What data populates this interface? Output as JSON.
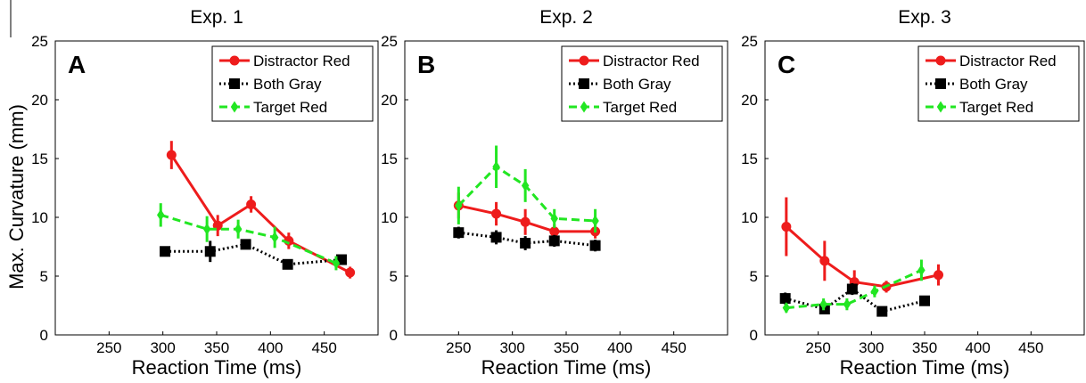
{
  "ylabel": "Max. Curvature (mm)",
  "colors": {
    "distractor_red": "#ee1c1c",
    "both_gray": "#000000",
    "target_red": "#22e622",
    "axis": "#000000",
    "background": "#ffffff"
  },
  "chart_data": [
    {
      "type": "line",
      "title": "Exp. 1",
      "panel_letter": "A",
      "xlabel": "Reaction Time (ms)",
      "ylabel": "Max. Curvature (mm)",
      "xlim": [
        200,
        500
      ],
      "ylim": [
        0,
        25
      ],
      "xticks": [
        250,
        300,
        350,
        400,
        450
      ],
      "yticks": [
        0,
        5,
        10,
        15,
        20,
        25
      ],
      "grid": false,
      "legend_position": "top-right",
      "series": [
        {
          "name": "Distractor Red",
          "color": "#ee1c1c",
          "style": "solid",
          "marker": "circle",
          "points": [
            {
              "x": 308,
              "y": 15.3,
              "err": 1.2
            },
            {
              "x": 351,
              "y": 9.3,
              "err": 0.9
            },
            {
              "x": 382,
              "y": 11.1,
              "err": 0.7
            },
            {
              "x": 417,
              "y": 8.0,
              "err": 0.7
            },
            {
              "x": 474,
              "y": 5.3,
              "err": 0.5
            }
          ]
        },
        {
          "name": "Both Gray",
          "color": "#000000",
          "style": "dotted",
          "marker": "square",
          "points": [
            {
              "x": 302,
              "y": 7.1,
              "err": 0.2
            },
            {
              "x": 344,
              "y": 7.1,
              "err": 0.9
            },
            {
              "x": 377,
              "y": 7.7,
              "err": 0.4
            },
            {
              "x": 416,
              "y": 6.0,
              "err": 0.3
            },
            {
              "x": 466,
              "y": 6.4,
              "err": 0.4
            }
          ]
        },
        {
          "name": "Target Red",
          "color": "#22e622",
          "style": "dashed",
          "marker": "diamond",
          "points": [
            {
              "x": 298,
              "y": 10.2,
              "err": 1.0
            },
            {
              "x": 341,
              "y": 9.0,
              "err": 1.1
            },
            {
              "x": 370,
              "y": 9.0,
              "err": 0.8
            },
            {
              "x": 404,
              "y": 8.3,
              "err": 0.9
            },
            {
              "x": 461,
              "y": 6.1,
              "err": 0.6
            }
          ]
        }
      ]
    },
    {
      "type": "line",
      "title": "Exp. 2",
      "panel_letter": "B",
      "xlabel": "Reaction Time (ms)",
      "ylabel": "",
      "xlim": [
        200,
        500
      ],
      "ylim": [
        0,
        25
      ],
      "xticks": [
        250,
        300,
        350,
        400,
        450
      ],
      "yticks": [
        0,
        5,
        10,
        15,
        20,
        25
      ],
      "grid": false,
      "legend_position": "top-right",
      "series": [
        {
          "name": "Distractor Red",
          "color": "#ee1c1c",
          "style": "solid",
          "marker": "circle",
          "points": [
            {
              "x": 250,
              "y": 11.0,
              "err": 1.1
            },
            {
              "x": 285,
              "y": 10.3,
              "err": 1.0
            },
            {
              "x": 312,
              "y": 9.6,
              "err": 1.1
            },
            {
              "x": 339,
              "y": 8.8,
              "err": 0.6
            },
            {
              "x": 377,
              "y": 8.8,
              "err": 0.6
            }
          ]
        },
        {
          "name": "Both Gray",
          "color": "#000000",
          "style": "dotted",
          "marker": "square",
          "points": [
            {
              "x": 250,
              "y": 8.7,
              "err": 0.5
            },
            {
              "x": 285,
              "y": 8.3,
              "err": 0.6
            },
            {
              "x": 312,
              "y": 7.8,
              "err": 0.6
            },
            {
              "x": 339,
              "y": 8.0,
              "err": 0.5
            },
            {
              "x": 377,
              "y": 7.6,
              "err": 0.5
            }
          ]
        },
        {
          "name": "Target Red",
          "color": "#22e622",
          "style": "dashed",
          "marker": "diamond",
          "points": [
            {
              "x": 250,
              "y": 11.0,
              "err": 1.6
            },
            {
              "x": 285,
              "y": 14.3,
              "err": 1.8
            },
            {
              "x": 312,
              "y": 12.7,
              "err": 1.4
            },
            {
              "x": 339,
              "y": 9.9,
              "err": 0.8
            },
            {
              "x": 377,
              "y": 9.7,
              "err": 1.0
            }
          ]
        }
      ]
    },
    {
      "type": "line",
      "title": "Exp. 3",
      "panel_letter": "C",
      "xlabel": "Reaction Time (ms)",
      "ylabel": "",
      "xlim": [
        200,
        500
      ],
      "ylim": [
        0,
        25
      ],
      "xticks": [
        250,
        300,
        350,
        400,
        450
      ],
      "yticks": [
        0,
        5,
        10,
        15,
        20,
        25
      ],
      "grid": false,
      "legend_position": "top-right",
      "series": [
        {
          "name": "Distractor Red",
          "color": "#ee1c1c",
          "style": "solid",
          "marker": "circle",
          "points": [
            {
              "x": 220,
              "y": 9.2,
              "err": 2.5
            },
            {
              "x": 256,
              "y": 6.3,
              "err": 1.7
            },
            {
              "x": 284,
              "y": 4.5,
              "err": 1.0
            },
            {
              "x": 314,
              "y": 4.1,
              "err": 0.5
            },
            {
              "x": 363,
              "y": 5.1,
              "err": 0.9
            }
          ]
        },
        {
          "name": "Both Gray",
          "color": "#000000",
          "style": "dotted",
          "marker": "square",
          "points": [
            {
              "x": 219,
              "y": 3.1,
              "err": 0.5
            },
            {
              "x": 256,
              "y": 2.2,
              "err": 0.4
            },
            {
              "x": 282,
              "y": 3.9,
              "err": 0.5
            },
            {
              "x": 310,
              "y": 2.0,
              "err": 0.3
            },
            {
              "x": 350,
              "y": 2.9,
              "err": 0.4
            }
          ]
        },
        {
          "name": "Target Red",
          "color": "#22e622",
          "style": "dashed",
          "marker": "diamond",
          "points": [
            {
              "x": 220,
              "y": 2.3,
              "err": 0.4
            },
            {
              "x": 255,
              "y": 2.6,
              "err": 0.5
            },
            {
              "x": 277,
              "y": 2.6,
              "err": 0.5
            },
            {
              "x": 303,
              "y": 3.7,
              "err": 0.5
            },
            {
              "x": 347,
              "y": 5.5,
              "err": 0.9
            }
          ]
        }
      ]
    }
  ]
}
